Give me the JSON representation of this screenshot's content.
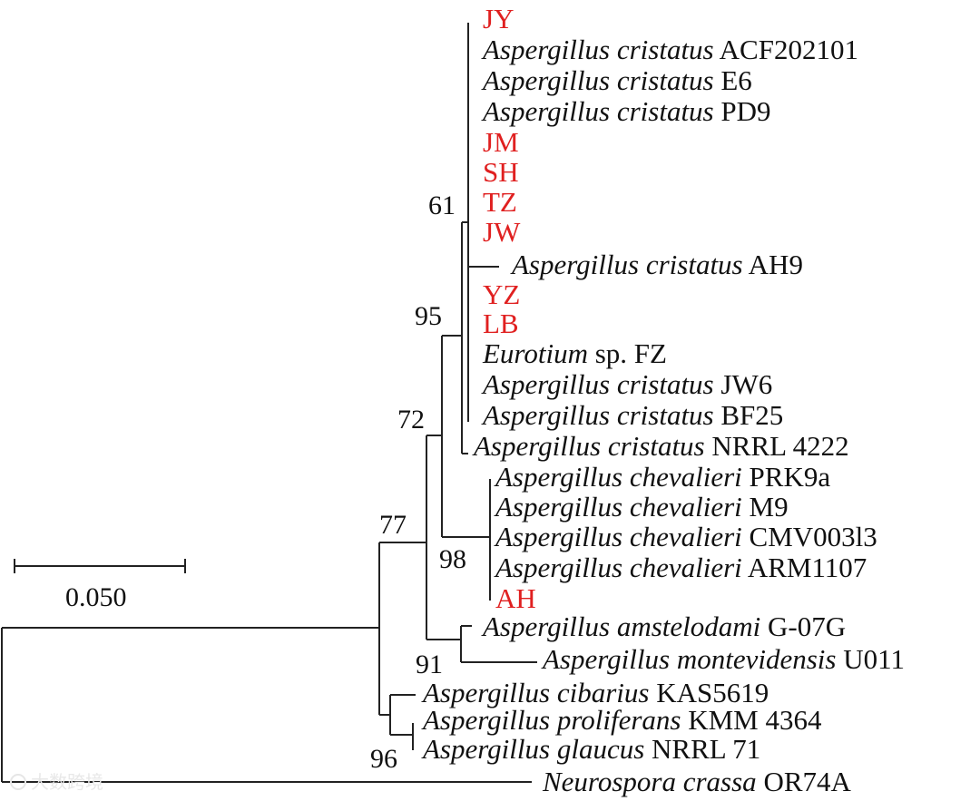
{
  "colors": {
    "highlight": "#e02020",
    "text": "#111111",
    "branch": "#222222"
  },
  "taxa": [
    {
      "genus": "",
      "species": "",
      "label": "JY",
      "highlight": true
    },
    {
      "genus": "Aspergillus",
      "species": "cristatus",
      "label": "ACF202101",
      "highlight": false
    },
    {
      "genus": "Aspergillus",
      "species": "cristatus",
      "label": "E6",
      "highlight": false
    },
    {
      "genus": "Aspergillus",
      "species": "cristatus",
      "label": "PD9",
      "highlight": false
    },
    {
      "genus": "",
      "species": "",
      "label": "JM",
      "highlight": true
    },
    {
      "genus": "",
      "species": "",
      "label": "SH",
      "highlight": true
    },
    {
      "genus": "",
      "species": "",
      "label": "TZ",
      "highlight": true
    },
    {
      "genus": "",
      "species": "",
      "label": "JW",
      "highlight": true
    },
    {
      "genus": "Aspergillus",
      "species": "cristatus",
      "label": "AH9",
      "highlight": false
    },
    {
      "genus": "",
      "species": "",
      "label": "YZ",
      "highlight": true
    },
    {
      "genus": "",
      "species": "",
      "label": "LB",
      "highlight": true
    },
    {
      "genus": "Eurotium",
      "species": "",
      "label": "sp. FZ",
      "highlight": false
    },
    {
      "genus": "Aspergillus",
      "species": "cristatus",
      "label": "JW6",
      "highlight": false
    },
    {
      "genus": "Aspergillus",
      "species": "cristatus",
      "label": "BF25",
      "highlight": false
    },
    {
      "genus": "Aspergillus",
      "species": "cristatus",
      "label": "NRRL 4222",
      "highlight": false
    },
    {
      "genus": "Aspergillus",
      "species": "chevalieri",
      "label": "PRK9a",
      "highlight": false
    },
    {
      "genus": "Aspergillus",
      "species": "chevalieri",
      "label": "M9",
      "highlight": false
    },
    {
      "genus": "Aspergillus",
      "species": "chevalieri",
      "label": "CMV003l3",
      "highlight": false
    },
    {
      "genus": "Aspergillus",
      "species": "chevalieri",
      "label": "ARM1107",
      "highlight": false
    },
    {
      "genus": "",
      "species": "",
      "label": "AH",
      "highlight": true
    },
    {
      "genus": "Aspergillus",
      "species": "amstelodami",
      "label": "G-07G",
      "highlight": false
    },
    {
      "genus": "Aspergillus",
      "species": "montevidensis",
      "label": "U011",
      "highlight": false
    },
    {
      "genus": "Aspergillus",
      "species": "cibarius",
      "label": "KAS5619",
      "highlight": false
    },
    {
      "genus": "Aspergillus",
      "species": "proliferans",
      "label": "KMM 4364",
      "highlight": false
    },
    {
      "genus": "Aspergillus",
      "species": "glaucus",
      "label": "NRRL 71",
      "highlight": false
    },
    {
      "genus": "Neurospora",
      "species": "crassa",
      "label": "OR74A",
      "highlight": false
    }
  ],
  "bootstrap": [
    "61",
    "95",
    "72",
    "77",
    "98",
    "91",
    "96"
  ],
  "scale": {
    "value": 0.05,
    "label": "0.050"
  },
  "watermark": "大数跨境"
}
